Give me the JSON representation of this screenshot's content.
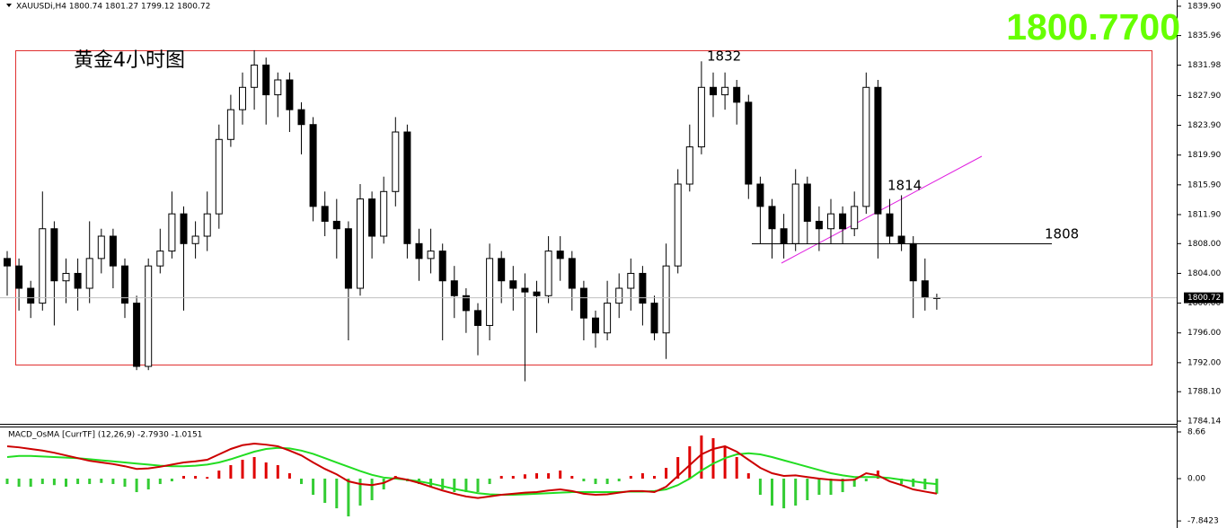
{
  "chart_data": [
    {
      "type": "candlestick",
      "header": "XAUUSDi,H4  1800.74 1801.27 1799.12 1800.72",
      "price_banner": "1800.7700",
      "title": "黄金4小时图",
      "annotations": [
        "1832",
        "1814",
        "1808"
      ],
      "up_color": "#ffffff",
      "down_color": "#000000",
      "open": [
        1806,
        1805,
        1802,
        1800,
        1810,
        1803,
        1804,
        1802,
        1806,
        1809,
        1805,
        1800,
        1791.5,
        1805,
        1807,
        1812,
        1808,
        1809,
        1812,
        1822,
        1826,
        1829,
        1832,
        1828,
        1830,
        1826,
        1824,
        1813,
        1811,
        1810,
        1802,
        1814,
        1809,
        1815,
        1823,
        1808,
        1806,
        1807,
        1803,
        1801,
        1799,
        1797,
        1806,
        1803,
        1802,
        1801.5,
        1801,
        1807,
        1806,
        1802,
        1798,
        1796,
        1800,
        1802,
        1804,
        1800,
        1796,
        1805,
        1816,
        1821,
        1829,
        1828,
        1829,
        1827,
        1816,
        1813,
        1810,
        1808,
        1816,
        1811,
        1810,
        1812,
        1810,
        1813,
        1829,
        1812,
        1809,
        1808,
        1803,
        1800.74
      ],
      "high": [
        1807,
        1806,
        1803,
        1815,
        1811,
        1806,
        1806,
        1811,
        1810,
        1810,
        1806,
        1801,
        1806,
        1810,
        1815,
        1813,
        1811,
        1815,
        1824,
        1828,
        1831,
        1834,
        1833,
        1831,
        1831,
        1827,
        1825,
        1815,
        1814,
        1811,
        1816,
        1815,
        1817,
        1825,
        1824,
        1810,
        1810,
        1808,
        1805,
        1802,
        1800,
        1808,
        1807,
        1805,
        1804,
        1803,
        1809,
        1809,
        1807,
        1803,
        1799,
        1803,
        1804,
        1806,
        1805,
        1801,
        1808,
        1818,
        1824,
        1832.5,
        1831,
        1831,
        1830,
        1828,
        1817,
        1814,
        1812,
        1818,
        1817,
        1813,
        1814,
        1813,
        1815,
        1831,
        1830,
        1814,
        1814.5,
        1809,
        1806,
        1801.27
      ],
      "low": [
        1801,
        1799,
        1798,
        1799,
        1797,
        1800,
        1799,
        1800,
        1804,
        1802,
        1798,
        1791,
        1791,
        1804,
        1806,
        1799,
        1806,
        1807,
        1810,
        1821,
        1824,
        1826,
        1824,
        1825,
        1823,
        1820,
        1811,
        1809,
        1806,
        1795,
        1801,
        1806,
        1808,
        1813,
        1806,
        1803,
        1804,
        1795,
        1798,
        1796,
        1793,
        1795,
        1800,
        1799,
        1789.5,
        1796,
        1800,
        1803,
        1799,
        1795,
        1794,
        1795,
        1798,
        1799,
        1797,
        1795,
        1792.5,
        1804,
        1815,
        1820,
        1825,
        1826,
        1824,
        1814,
        1808,
        1806,
        1806,
        1807,
        1808,
        1807,
        1808,
        1808,
        1809,
        1812,
        1806,
        1808,
        1807,
        1798,
        1799,
        1799.12
      ],
      "close": [
        1805,
        1802,
        1800,
        1810,
        1803,
        1804,
        1802,
        1806,
        1809,
        1805,
        1800,
        1791.5,
        1805,
        1807,
        1812,
        1808,
        1809,
        1812,
        1822,
        1826,
        1829,
        1832,
        1828,
        1830,
        1826,
        1824,
        1813,
        1811,
        1810,
        1802,
        1814,
        1809,
        1815,
        1823,
        1808,
        1806,
        1807,
        1803,
        1801,
        1799,
        1797,
        1806,
        1803,
        1802,
        1801.5,
        1801,
        1807,
        1806,
        1802,
        1798,
        1796,
        1800,
        1802,
        1804,
        1800,
        1796,
        1805,
        1816,
        1821,
        1829,
        1828,
        1829,
        1827,
        1816,
        1813,
        1810,
        1808,
        1816,
        1811,
        1810,
        1812,
        1810,
        1813,
        1829,
        1812,
        1809,
        1808,
        1803,
        1800.74,
        1800.72
      ],
      "ylim": [
        1783.78,
        1840.74
      ],
      "yticks": [
        {
          "value": 1839.9,
          "label": "1839.90"
        },
        {
          "value": 1835.96,
          "label": "1835.96"
        },
        {
          "value": 1831.98,
          "label": "1831.98"
        },
        {
          "value": 1827.9,
          "label": "1827.90"
        },
        {
          "value": 1823.9,
          "label": "1823.90"
        },
        {
          "value": 1819.9,
          "label": "1819.90"
        },
        {
          "value": 1815.9,
          "label": "1815.90"
        },
        {
          "value": 1811.9,
          "label": "1811.90"
        },
        {
          "value": 1808,
          "label": "1808.00"
        },
        {
          "value": 1804,
          "label": "1804.00"
        },
        {
          "value": 1800,
          "label": "1800.00"
        },
        {
          "value": 1796,
          "label": "1796.00"
        },
        {
          "value": 1792,
          "label": "1792.00"
        },
        {
          "value": 1788.1,
          "label": "1788.10"
        },
        {
          "value": 1784.14,
          "label": "1784.14"
        }
      ]
    },
    {
      "type": "macd",
      "label": "MACD_OsMA [CurrTF] (12,26,9) -2.7930 -1.0151",
      "histogram_up_color": "#e00000",
      "histogram_down_color": "#33cc33",
      "macd_color": "#cc0000",
      "signal_color": "#22dd22",
      "histogram": [
        -1,
        -1.5,
        -1.5,
        -1,
        -1.2,
        -1.5,
        -1,
        -1,
        -0.8,
        -1,
        -1.5,
        -2.5,
        -2,
        -1,
        -0.5,
        0.5,
        0.5,
        0.3,
        1.5,
        2.5,
        3.5,
        4,
        3,
        2.5,
        1,
        -1,
        -3,
        -4.5,
        -5.5,
        -7,
        -5,
        -4,
        -2,
        0.5,
        -0.5,
        -1,
        -1.5,
        -2,
        -2.5,
        -2.5,
        -2.5,
        -1,
        0.5,
        0.5,
        0.8,
        1,
        1,
        1.5,
        0.5,
        -0.5,
        -1,
        -1,
        -0.5,
        0.5,
        1,
        0.5,
        2,
        4,
        6,
        8,
        7.5,
        6,
        4,
        1,
        -3,
        -5,
        -5.5,
        -5,
        -4,
        -3,
        -3,
        -2.5,
        -1.5,
        -0.5,
        1.5,
        0,
        -1,
        -1.5,
        -2,
        -2.8
      ],
      "macd_line": [
        6,
        5.8,
        5.5,
        5.2,
        4.8,
        4.3,
        3.8,
        3.3,
        3,
        2.7,
        2.3,
        1.8,
        1.9,
        2.2,
        2.6,
        3,
        3.2,
        3.5,
        4.5,
        5.5,
        6.2,
        6.5,
        6.3,
        6,
        5.2,
        4.3,
        3,
        1.8,
        0.8,
        -0.5,
        -1,
        -1.2,
        -0.8,
        0.2,
        -0.2,
        -0.8,
        -1.5,
        -2.2,
        -2.8,
        -3.3,
        -3.6,
        -3.3,
        -3,
        -2.8,
        -2.6,
        -2.5,
        -2.2,
        -2,
        -2.3,
        -2.8,
        -3,
        -2.9,
        -2.6,
        -2.3,
        -2.3,
        -2.5,
        -1.5,
        0.5,
        2.5,
        4.5,
        5.5,
        6,
        5,
        3.5,
        2,
        1,
        0.5,
        0.6,
        0.3,
        0,
        -0.2,
        -0.3,
        -0.2,
        1,
        0.6,
        -0.5,
        -1.2,
        -2,
        -2.4,
        -2.79
      ],
      "signal_line": [
        4,
        4.2,
        4.2,
        4.1,
        4,
        3.9,
        3.8,
        3.6,
        3.4,
        3.2,
        3,
        2.8,
        2.6,
        2.4,
        2.3,
        2.3,
        2.4,
        2.6,
        3,
        3.6,
        4.3,
        5,
        5.5,
        5.7,
        5.6,
        5.2,
        4.6,
        3.8,
        3,
        2.2,
        1.4,
        0.7,
        0.2,
        0,
        -0.2,
        -0.5,
        -0.9,
        -1.4,
        -1.9,
        -2.3,
        -2.7,
        -2.9,
        -3,
        -3,
        -2.9,
        -2.8,
        -2.7,
        -2.6,
        -2.5,
        -2.5,
        -2.5,
        -2.5,
        -2.5,
        -2.4,
        -2.4,
        -2.3,
        -2,
        -1.2,
        0,
        1.5,
        2.8,
        3.8,
        4.5,
        4.7,
        4.5,
        4,
        3.4,
        2.8,
        2.2,
        1.6,
        1,
        0.6,
        0.3,
        0.3,
        0.3,
        0.1,
        -0.2,
        -0.5,
        -0.8,
        -1.02
      ],
      "ylim": [
        -8.82,
        9.66
      ],
      "yticks": [
        8.66,
        {
          "value": 0,
          "label": "0.00"
        },
        -7.8423
      ]
    }
  ]
}
